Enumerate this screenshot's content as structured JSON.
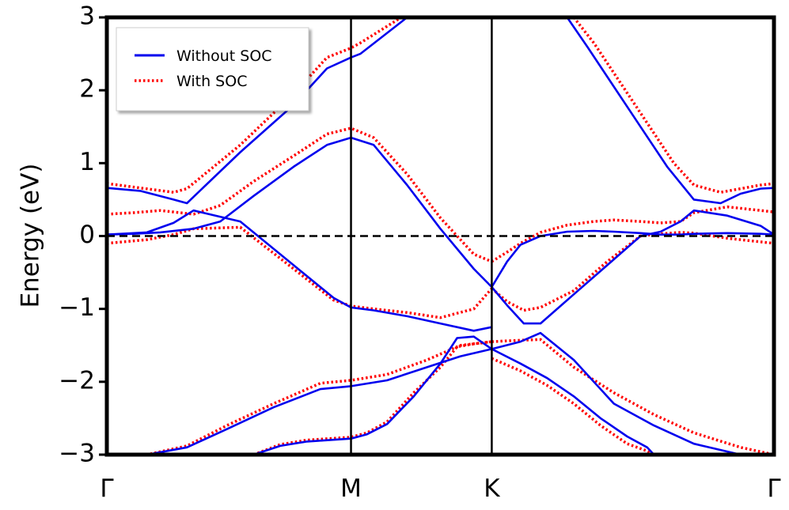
{
  "chart_data": {
    "type": "line",
    "title": "",
    "xlabel": "",
    "ylabel": "Energy (eV)",
    "ylim": [
      -3,
      3
    ],
    "xlim": [
      0,
      1
    ],
    "yticks": [
      -3,
      -2,
      -1,
      0,
      1,
      2,
      3
    ],
    "ytick_labels": [
      "−3",
      "−2",
      "−1",
      "0",
      "1",
      "2",
      "3"
    ],
    "kpoints": [
      {
        "label": "Γ",
        "x": 0.0
      },
      {
        "label": "M",
        "x": 0.366
      },
      {
        "label": "K",
        "x": 0.577
      },
      {
        "label": "Γ",
        "x": 1.0
      }
    ],
    "fermi_level": 0,
    "legend": {
      "placement": "top-left"
    },
    "colors": {
      "without_soc": "#0000ee",
      "with_soc": "#ff0000",
      "axes": "#000000"
    },
    "series": [
      {
        "name": "Without SOC",
        "style": "solid",
        "bands": [
          {
            "x": [
              0.0,
              0.06,
              0.1,
              0.13,
              0.2,
              0.28,
              0.34,
              0.366,
              0.4,
              0.45,
              0.5,
              0.55,
              0.577
            ],
            "y": [
              0.02,
              0.05,
              0.18,
              0.35,
              0.2,
              -0.4,
              -0.85,
              -0.98,
              -1.02,
              -1.1,
              -1.2,
              -1.3,
              -1.25
            ]
          },
          {
            "x": [
              0.0,
              0.04,
              0.08,
              0.13,
              0.17,
              0.22,
              0.28,
              0.33,
              0.366,
              0.4,
              0.45,
              0.5,
              0.55,
              0.577
            ],
            "y": [
              0.02,
              0.03,
              0.05,
              0.1,
              0.2,
              0.55,
              0.95,
              1.25,
              1.35,
              1.25,
              0.7,
              0.1,
              -0.45,
              -0.7
            ]
          },
          {
            "x": [
              0.0,
              0.05,
              0.1,
              0.12,
              0.2,
              0.28,
              0.33,
              0.366,
              0.38,
              0.45
            ],
            "y": [
              0.66,
              0.62,
              0.5,
              0.45,
              1.15,
              1.8,
              2.3,
              2.45,
              2.5,
              3.0
            ]
          },
          {
            "x": [
              0.577,
              0.6,
              0.62,
              0.65,
              0.69,
              0.73,
              0.76,
              0.8,
              0.83,
              0.86,
              0.88,
              0.93,
              0.98,
              1.0
            ],
            "y": [
              -0.7,
              -0.35,
              -0.12,
              0.0,
              0.06,
              0.07,
              0.06,
              0.04,
              0.02,
              0.02,
              0.03,
              0.04,
              0.03,
              0.02
            ]
          },
          {
            "x": [
              0.577,
              0.6,
              0.625,
              0.65,
              0.7,
              0.75,
              0.8,
              0.83,
              0.86,
              0.88,
              0.93,
              0.98,
              1.0
            ],
            "y": [
              -0.7,
              -0.95,
              -1.2,
              -1.2,
              -0.8,
              -0.4,
              0.0,
              0.06,
              0.2,
              0.35,
              0.28,
              0.14,
              0.02
            ]
          },
          {
            "x": [
              0.69,
              0.72,
              0.76,
              0.8,
              0.84,
              0.88,
              0.92,
              0.95,
              0.98,
              1.0
            ],
            "y": [
              3.0,
              2.6,
              2.05,
              1.5,
              0.95,
              0.5,
              0.45,
              0.58,
              0.65,
              0.66
            ]
          },
          {
            "x": [
              0.0,
              0.06,
              0.12,
              0.18,
              0.25,
              0.32,
              0.366,
              0.42,
              0.48,
              0.53,
              0.577
            ],
            "y": [
              -3.0,
              -3.0,
              -2.9,
              -2.65,
              -2.35,
              -2.1,
              -2.06,
              -1.98,
              -1.8,
              -1.65,
              -1.55
            ]
          },
          {
            "x": [
              0.22,
              0.26,
              0.3,
              0.366,
              0.39,
              0.42,
              0.46,
              0.5,
              0.525,
              0.55,
              0.577
            ],
            "y": [
              -3.0,
              -2.88,
              -2.82,
              -2.78,
              -2.72,
              -2.58,
              -2.2,
              -1.75,
              -1.4,
              -1.38,
              -1.55
            ]
          },
          {
            "x": [
              0.577,
              0.62,
              0.65,
              0.7,
              0.76,
              0.82,
              0.88,
              0.95,
              1.0
            ],
            "y": [
              -1.55,
              -1.45,
              -1.33,
              -1.7,
              -2.3,
              -2.6,
              -2.85,
              -3.0,
              -3.0
            ]
          },
          {
            "x": [
              0.577,
              0.62,
              0.66,
              0.7,
              0.74,
              0.78,
              0.81,
              0.82
            ],
            "y": [
              -1.55,
              -1.75,
              -1.95,
              -2.2,
              -2.5,
              -2.75,
              -2.9,
              -3.0
            ]
          }
        ]
      },
      {
        "name": "With SOC",
        "style": "dotted",
        "bands": [
          {
            "x": [
              0.0,
              0.06,
              0.1,
              0.13,
              0.2,
              0.28,
              0.34,
              0.366,
              0.4,
              0.45,
              0.5,
              0.55,
              0.577
            ],
            "y": [
              -0.1,
              -0.05,
              0.02,
              0.1,
              0.12,
              -0.45,
              -0.88,
              -0.96,
              -1.0,
              -1.05,
              -1.12,
              -1.0,
              -0.72
            ]
          },
          {
            "x": [
              0.0,
              0.04,
              0.08,
              0.13,
              0.17,
              0.22,
              0.28,
              0.33,
              0.366,
              0.4,
              0.45,
              0.5,
              0.55,
              0.577
            ],
            "y": [
              0.3,
              0.32,
              0.35,
              0.3,
              0.42,
              0.75,
              1.1,
              1.4,
              1.48,
              1.35,
              0.85,
              0.25,
              -0.25,
              -0.35
            ]
          },
          {
            "x": [
              0.0,
              0.05,
              0.1,
              0.12,
              0.2,
              0.28,
              0.33,
              0.366,
              0.38,
              0.45
            ],
            "y": [
              0.72,
              0.66,
              0.6,
              0.65,
              1.25,
              1.95,
              2.45,
              2.58,
              2.65,
              3.05
            ]
          },
          {
            "x": [
              0.577,
              0.6,
              0.62,
              0.65,
              0.69,
              0.73,
              0.76,
              0.8,
              0.83,
              0.86,
              0.88,
              0.93,
              0.98,
              1.0
            ],
            "y": [
              -0.35,
              -0.22,
              -0.1,
              0.05,
              0.15,
              0.2,
              0.22,
              0.2,
              0.18,
              0.2,
              0.32,
              0.4,
              0.35,
              0.33
            ]
          },
          {
            "x": [
              0.577,
              0.6,
              0.625,
              0.65,
              0.7,
              0.75,
              0.8,
              0.83,
              0.86,
              0.88,
              0.93,
              0.98,
              1.0
            ],
            "y": [
              -0.72,
              -0.9,
              -1.02,
              -0.98,
              -0.75,
              -0.35,
              0.0,
              0.03,
              0.05,
              0.04,
              -0.03,
              -0.08,
              -0.1
            ]
          },
          {
            "x": [
              0.7,
              0.73,
              0.77,
              0.81,
              0.85,
              0.88,
              0.92,
              0.95,
              0.98,
              1.0
            ],
            "y": [
              3.0,
              2.65,
              2.1,
              1.55,
              1.0,
              0.7,
              0.6,
              0.65,
              0.7,
              0.72
            ]
          },
          {
            "x": [
              0.0,
              0.06,
              0.12,
              0.18,
              0.25,
              0.32,
              0.366,
              0.42,
              0.48,
              0.53,
              0.577
            ],
            "y": [
              -3.0,
              -3.0,
              -2.88,
              -2.6,
              -2.3,
              -2.02,
              -1.98,
              -1.9,
              -1.7,
              -1.5,
              -1.45
            ]
          },
          {
            "x": [
              0.22,
              0.26,
              0.3,
              0.366,
              0.39,
              0.42,
              0.46,
              0.5,
              0.525,
              0.55,
              0.577
            ],
            "y": [
              -3.0,
              -2.86,
              -2.8,
              -2.76,
              -2.7,
              -2.55,
              -2.15,
              -1.8,
              -1.52,
              -1.48,
              -1.45
            ]
          },
          {
            "x": [
              0.577,
              0.62,
              0.65,
              0.7,
              0.76,
              0.82,
              0.88,
              0.95,
              1.0
            ],
            "y": [
              -1.45,
              -1.43,
              -1.42,
              -1.8,
              -2.15,
              -2.45,
              -2.7,
              -2.9,
              -3.0
            ]
          },
          {
            "x": [
              0.577,
              0.62,
              0.66,
              0.7,
              0.74,
              0.78,
              0.81,
              0.82
            ],
            "y": [
              -1.68,
              -1.85,
              -2.05,
              -2.3,
              -2.6,
              -2.85,
              -2.95,
              -3.0
            ]
          }
        ]
      }
    ]
  }
}
